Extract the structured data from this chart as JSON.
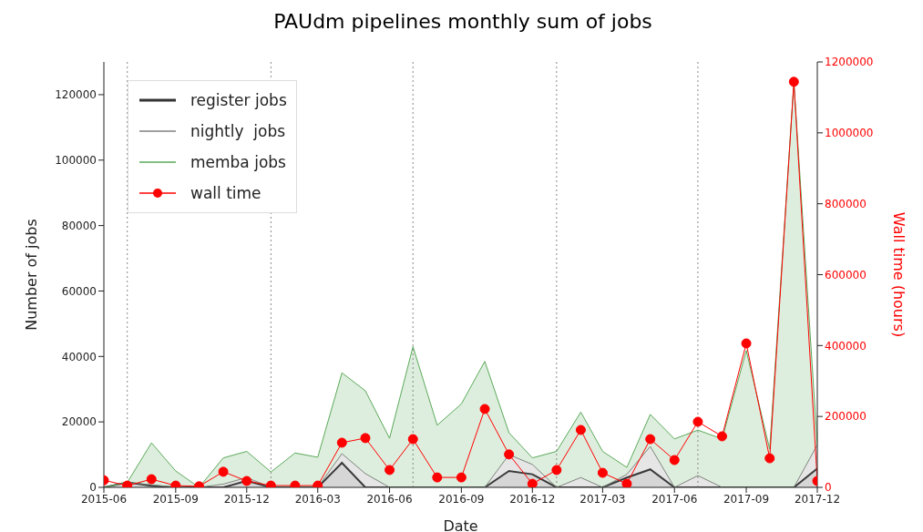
{
  "chart_data": {
    "type": "area",
    "title": "PAUdm pipelines monthly sum of jobs",
    "xlabel": "Date",
    "ylabel": "Number of jobs",
    "y2label": "Wall time (hours)",
    "x": [
      "2015-06",
      "2015-07",
      "2015-08",
      "2015-09",
      "2015-10",
      "2015-11",
      "2015-12",
      "2016-01",
      "2016-02",
      "2016-03",
      "2016-04",
      "2016-05",
      "2016-06",
      "2016-07",
      "2016-08",
      "2016-09",
      "2016-10",
      "2016-11",
      "2016-12",
      "2017-01",
      "2017-02",
      "2017-03",
      "2017-04",
      "2017-05",
      "2017-06",
      "2017-07",
      "2017-08",
      "2017-09",
      "2017-10",
      "2017-11",
      "2017-12"
    ],
    "stacked": true,
    "series": [
      {
        "name": "register jobs",
        "color": "#333333",
        "values": [
          0,
          1500,
          500,
          0,
          0,
          0,
          2000,
          0,
          0,
          0,
          7500,
          0,
          0,
          0,
          0,
          0,
          0,
          5000,
          4000,
          0,
          0,
          0,
          3000,
          5500,
          0,
          0,
          0,
          0,
          0,
          0,
          5800
        ]
      },
      {
        "name": "nightly  jobs",
        "color": "#808080",
        "values": [
          0,
          0,
          300,
          0,
          0,
          1000,
          1000,
          0,
          0,
          0,
          2800,
          4200,
          0,
          0,
          0,
          0,
          0,
          5000,
          3000,
          0,
          3000,
          0,
          1000,
          7000,
          0,
          3600,
          0,
          0,
          0,
          0,
          7200
        ]
      },
      {
        "name": "memba jobs",
        "color": "#5aaa5a",
        "values": [
          0,
          0,
          12800,
          5000,
          0,
          8000,
          8000,
          4700,
          10500,
          9200,
          24700,
          25300,
          15000,
          43000,
          19000,
          25500,
          38500,
          6700,
          2000,
          11000,
          20000,
          11000,
          2100,
          9800,
          14800,
          13900,
          14800,
          41800,
          11700,
          124000,
          0
        ]
      },
      {
        "name": "wall time",
        "type": "line",
        "axis": "y2",
        "color": "#ff0000",
        "marker": "circle",
        "line_style": "solid",
        "values": [
          20000,
          5000,
          23000,
          5000,
          3000,
          44000,
          18000,
          5000,
          5000,
          5000,
          126000,
          139000,
          49000,
          136000,
          28000,
          28000,
          221000,
          93000,
          10000,
          49000,
          162000,
          41000,
          10000,
          136000,
          77000,
          185000,
          144000,
          406000,
          82000,
          1144000,
          18000
        ]
      }
    ],
    "xlim": [
      "2015-06",
      "2017-12"
    ],
    "xticks": [
      {
        "value": "2015-06",
        "label": "2015-06"
      },
      {
        "value": "2015-09",
        "label": "2015-09"
      },
      {
        "value": "2015-12",
        "label": "2015-12"
      },
      {
        "value": "2016-03",
        "label": "2016-03"
      },
      {
        "value": "2016-06",
        "label": "2016-06"
      },
      {
        "value": "2016-09",
        "label": "2016-09"
      },
      {
        "value": "2016-12",
        "label": "2016-12"
      },
      {
        "value": "2017-03",
        "label": "2017-03"
      },
      {
        "value": "2017-06",
        "label": "2017-06"
      },
      {
        "value": "2017-09",
        "label": "2017-09"
      },
      {
        "value": "2017-12",
        "label": "2017-12"
      }
    ],
    "ylim": [
      0,
      130000
    ],
    "yticks": [
      0,
      20000,
      40000,
      60000,
      80000,
      100000,
      120000
    ],
    "y2lim": [
      0,
      1200000
    ],
    "y2ticks": [
      0,
      200000,
      400000,
      600000,
      800000,
      1000000,
      1200000
    ],
    "ref_lines": [
      {
        "axis": "x",
        "value": "2015-07",
        "color": "#888888",
        "line_style": "dotted"
      },
      {
        "axis": "x",
        "value": "2016-01",
        "color": "#888888",
        "line_style": "dotted"
      },
      {
        "axis": "x",
        "value": "2016-07",
        "color": "#888888",
        "line_style": "dotted"
      },
      {
        "axis": "x",
        "value": "2017-01",
        "color": "#888888",
        "line_style": "dotted"
      },
      {
        "axis": "x",
        "value": "2017-07",
        "color": "#888888",
        "line_style": "dotted"
      }
    ],
    "grid": false,
    "legend": "top left"
  }
}
